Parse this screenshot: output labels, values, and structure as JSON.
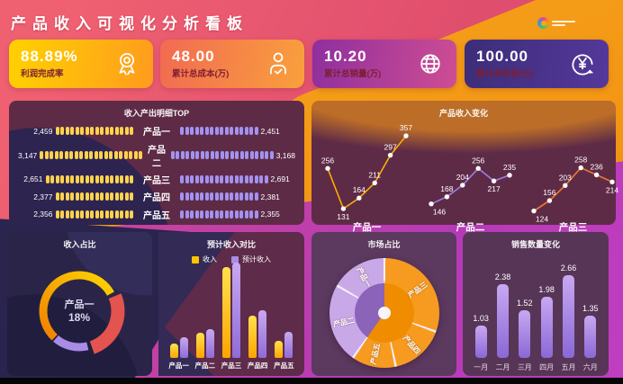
{
  "header": {
    "title": "产品收入可视化分析看板"
  },
  "kpis": [
    {
      "value": "88.89%",
      "label": "利润完成率",
      "icon": "medal-icon"
    },
    {
      "value": "48.00",
      "label": "累计总成本(万)",
      "icon": "person-check-icon"
    },
    {
      "value": "10.20",
      "label": "累计总销量(万)",
      "icon": "globe-icon"
    },
    {
      "value": "100.00",
      "label": "累计总利润(万)",
      "icon": "yen-coin-icon"
    }
  ],
  "chart_data": [
    {
      "type": "bar",
      "subtype": "pictorial-horizontal",
      "title": "收入产出明细TOP",
      "categories": [
        "产品一",
        "产品二",
        "产品三",
        "产品四",
        "产品五"
      ],
      "series": [
        {
          "name": "left",
          "color": "#ffd34d",
          "values": [
            2459,
            3147,
            2651,
            2377,
            2356
          ],
          "labels": [
            "2,459",
            "3,147",
            "2,651",
            "2,377",
            "2,356"
          ]
        },
        {
          "name": "right",
          "color": "#a393f0",
          "values": [
            2451,
            3168,
            2691,
            2381,
            2355
          ],
          "labels": [
            "2,451",
            "3,168",
            "2,691",
            "2,381",
            "2,355"
          ]
        }
      ]
    },
    {
      "type": "line",
      "title": "产品收入变化",
      "x_groups": [
        "产品一",
        "产品二",
        "产品三"
      ],
      "ylim": [
        120,
        360
      ],
      "series": [
        {
          "name": "产品一",
          "color": "#fdae02",
          "values": [
            256,
            131,
            164,
            211,
            297,
            357
          ]
        },
        {
          "name": "产品二",
          "color": "#9b7fe0",
          "values": [
            146,
            168,
            204,
            256,
            217,
            235
          ]
        },
        {
          "name": "产品三",
          "color": "#ef7c30",
          "values": [
            124,
            156,
            203,
            258,
            236,
            214
          ]
        }
      ]
    },
    {
      "type": "donut",
      "title": "收入占比",
      "center_label": "产品一",
      "center_value": "18%",
      "start_angle": -137,
      "gap_deg": 6,
      "segments": [
        {
          "pct": 55,
          "color": "#ffc400",
          "color_start": "#f08000",
          "color_end": "#ffd400",
          "emphasis": false
        },
        {
          "pct": 26,
          "color": "#e2544d",
          "emphasis": true
        },
        {
          "pct": 15,
          "color": "#a98ce6",
          "emphasis": false
        }
      ]
    },
    {
      "type": "bar",
      "subtype": "grouped-vertical",
      "title": "预计收入对比",
      "categories": [
        "产品一",
        "产品二",
        "产品三",
        "产品四",
        "产品五"
      ],
      "legend": [
        "收入",
        "预计收入"
      ],
      "series": [
        {
          "name": "收入",
          "color": "#ffc400",
          "values_pct_of_max": [
            15,
            26,
            95,
            44,
            18
          ]
        },
        {
          "name": "预计收入",
          "color": "#a98ce6",
          "values_pct_of_max": [
            22,
            30,
            100,
            50,
            27
          ]
        }
      ]
    },
    {
      "type": "pie",
      "subtype": "sunburst",
      "title": "市场占比",
      "slices": [
        {
          "label": "产品三",
          "from_deg": 0,
          "to_deg": 110,
          "color": "#f79b20"
        },
        {
          "label": "产品四",
          "from_deg": 110,
          "to_deg": 168,
          "color": "#f79b20"
        },
        {
          "label": "产品五",
          "from_deg": 168,
          "to_deg": 215,
          "color": "#f79b20"
        },
        {
          "label": "产品二",
          "from_deg": 215,
          "to_deg": 300,
          "color": "#c9a8e8"
        },
        {
          "label": "产品一",
          "from_deg": 300,
          "to_deg": 360,
          "color": "#c9a8e8"
        }
      ],
      "inner_ring": [
        {
          "from_deg": 0,
          "to_deg": 215,
          "color": "#f08c00"
        },
        {
          "from_deg": 215,
          "to_deg": 360,
          "color": "#8b63b8"
        }
      ]
    },
    {
      "type": "bar",
      "subtype": "vertical",
      "title": "销售数量变化",
      "categories": [
        "一月",
        "二月",
        "三月",
        "四月",
        "五月",
        "六月"
      ],
      "values": [
        1.03,
        2.38,
        1.52,
        1.98,
        2.66,
        1.35
      ],
      "labels": [
        "1.03",
        "2.38",
        "1.52",
        "1.98",
        "2.66",
        "1.35"
      ]
    }
  ]
}
